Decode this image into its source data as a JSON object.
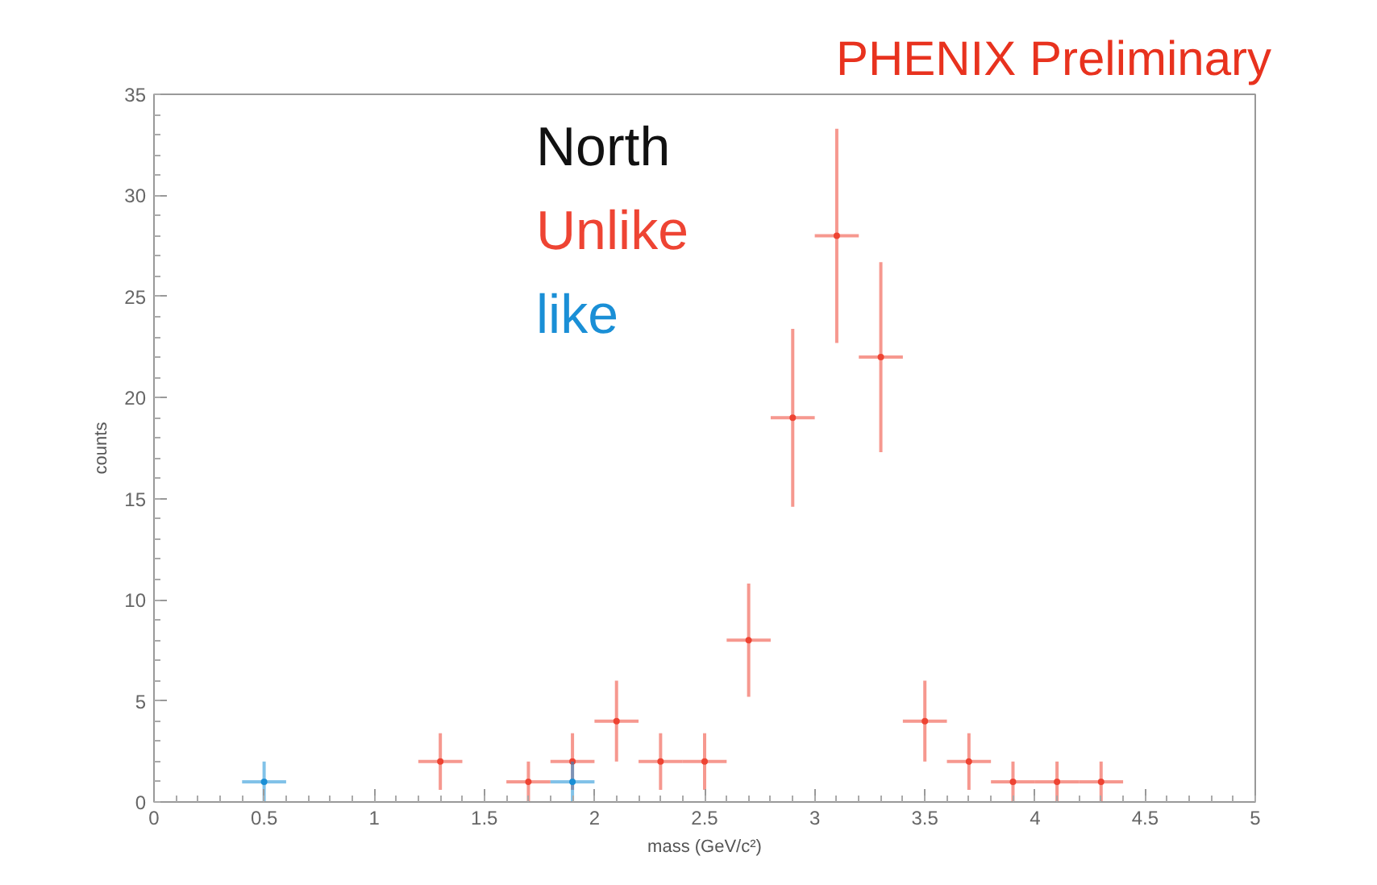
{
  "chart_data": {
    "type": "scatter",
    "title": "PHENIX Preliminary",
    "xlabel": "mass (GeV/c²)",
    "ylabel": "counts",
    "annotations": [
      "North"
    ],
    "marker": "circle",
    "grid": false,
    "xlim": [
      0,
      5
    ],
    "ylim": [
      0,
      35
    ],
    "xticks": [
      0,
      0.5,
      1,
      1.5,
      2,
      2.5,
      3,
      3.5,
      4,
      4.5,
      5
    ],
    "yticks": [
      0,
      5,
      10,
      15,
      20,
      25,
      30,
      35
    ],
    "series": [
      {
        "name": "Unlike",
        "color": "#ee4433",
        "x": [
          1.3,
          1.7,
          1.9,
          2.1,
          2.3,
          2.5,
          2.7,
          2.9,
          3.1,
          3.3,
          3.5,
          3.7,
          3.9,
          4.1,
          4.3
        ],
        "values": [
          2,
          1,
          2,
          4,
          2,
          2,
          8,
          19,
          28,
          22,
          4,
          2,
          1,
          1,
          1
        ],
        "errors": [
          1.4,
          1,
          1.4,
          2,
          1.4,
          1.4,
          2.8,
          4.4,
          5.3,
          4.7,
          2,
          1.4,
          1,
          1,
          1
        ],
        "xerrors": [
          0.1,
          0.1,
          0.1,
          0.1,
          0.1,
          0.1,
          0.1,
          0.1,
          0.1,
          0.1,
          0.1,
          0.1,
          0.1,
          0.1,
          0.1
        ]
      },
      {
        "name": "like",
        "color": "#1a8fd6",
        "x": [
          0.5,
          1.9
        ],
        "values": [
          1,
          1
        ],
        "errors": [
          1,
          1
        ],
        "xerrors": [
          0.1,
          0.1
        ]
      }
    ]
  }
}
